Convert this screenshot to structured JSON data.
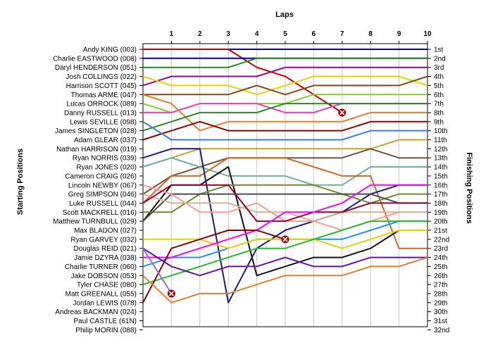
{
  "chart_data": {
    "type": "line",
    "title": "Laps",
    "ylabel_left": "Starting Positions",
    "ylabel_right": "Finishing Positions",
    "laps": [
      1,
      2,
      3,
      4,
      5,
      6,
      7,
      8,
      9,
      10
    ],
    "starting_labels": [
      "Andy KING (003)",
      "Charlie EASTWOOD (008)",
      "Daryl HENDERSON (051)",
      "Josh COLLINGS (022)",
      "Harrison SCOTT (045)",
      "Thomas ARME (047)",
      "Lucas ORROCK (089)",
      "Danny RUSSELL (013)",
      "Lewis SEVILLE (098)",
      "James SINGLETON (028)",
      "Adam GLEAR (037)",
      "Nathan HARRISON (019)",
      "Ryan NORRIS (039)",
      "Ryan JONES (020)",
      "Cameron CRAIG (026)",
      "Lincoln NEWBY (067)",
      "Greg SIMPSON (046)",
      "Luke RUSSELL (044)",
      "Scott MACKRELL (016)",
      "Matthew TURNBULL (029)",
      "Max BLADON (027)",
      "Ryan GARVEY (032)",
      "Douglas REID (021)",
      "Jamie DZYRA (038)",
      "Charlie TURNER (060)",
      "Jake DOBSON (053)",
      "Tyler CHASE (080)",
      "Matt GREENALL (055)",
      "Jordan LEWIS (078)",
      "Andreas BACKMAN (024)",
      "Paul CASTLE (61N)",
      "Philip MORIN (088)"
    ],
    "finishing_labels": [
      "1st",
      "2nd",
      "3rd",
      "4th",
      "5th",
      "6th",
      "7th",
      "8th",
      "9th",
      "10th",
      "11th",
      "12th",
      "13th",
      "14th",
      "15th",
      "16th",
      "17th",
      "18th",
      "19th",
      "20th",
      "21st",
      "22nd",
      "23rd",
      "24th",
      "25th",
      "26th",
      "27th",
      "28th",
      "29th",
      "30th",
      "31st",
      "32nd"
    ],
    "y_range": [
      1,
      32
    ],
    "grid": "vertical",
    "retired_marker": "x",
    "series": [
      {
        "color": "#0000cc",
        "positions": [
          1,
          1,
          1,
          1,
          1,
          1,
          1,
          1,
          1,
          1,
          1
        ]
      },
      {
        "color": "#cc0000",
        "positions": [
          1,
          1,
          1,
          1,
          3,
          4,
          6,
          8
        ]
      },
      {
        "color": "#0000aa",
        "positions": [
          2,
          2,
          2,
          2,
          2,
          2,
          2,
          2,
          2,
          2,
          2
        ]
      },
      {
        "color": "#228b22",
        "positions": [
          3,
          3,
          3,
          3,
          2,
          2,
          2,
          2,
          2,
          2,
          2
        ]
      },
      {
        "color": "#990099",
        "positions": [
          5,
          4,
          4,
          4,
          4,
          3,
          3,
          3,
          3,
          3,
          3
        ]
      },
      {
        "color": "#e6d200",
        "positions": [
          4,
          5,
          5,
          5,
          6,
          5,
          4,
          4,
          4,
          4,
          5
        ]
      },
      {
        "color": "#8b4513",
        "positions": [
          6,
          6,
          6,
          6,
          5,
          6,
          5,
          5,
          5,
          5,
          4
        ]
      },
      {
        "color": "#7ed321",
        "positions": [
          7,
          8,
          7,
          7,
          7,
          7,
          6,
          6,
          6,
          6,
          6
        ]
      },
      {
        "color": "#ff33cc",
        "positions": [
          8,
          8,
          7,
          7,
          7,
          8,
          8,
          7,
          7,
          7,
          7
        ]
      },
      {
        "color": "#e67e22",
        "positions": [
          6,
          7,
          10,
          9,
          9,
          9,
          9,
          9,
          8,
          8,
          8
        ]
      },
      {
        "color": "#8b0000",
        "positions": [
          11,
          10,
          9,
          10,
          10,
          10,
          10,
          10,
          9,
          9,
          9
        ]
      },
      {
        "color": "#228b22",
        "positions": [
          10,
          9,
          8,
          8,
          8,
          7,
          7,
          7,
          7,
          7,
          7
        ]
      },
      {
        "color": "#3a7fd5",
        "positions": [
          9,
          11,
          11,
          11,
          11,
          11,
          11,
          11,
          10,
          10,
          10
        ]
      },
      {
        "color": "#c9a227",
        "positions": [
          14,
          13,
          12,
          12,
          12,
          12,
          12,
          12,
          12,
          11,
          11
        ]
      },
      {
        "color": "#70543a",
        "positions": [
          17,
          15,
          14,
          13,
          13,
          13,
          13,
          13,
          12,
          13,
          13
        ]
      },
      {
        "color": "#66b2a8",
        "positions": [
          14,
          13,
          14,
          15,
          15,
          15,
          16,
          16,
          14,
          14,
          14
        ]
      },
      {
        "color": "#d2691e",
        "positions": [
          18,
          15,
          15,
          13,
          13,
          13,
          14,
          15,
          15,
          23,
          23
        ]
      },
      {
        "color": "#111111",
        "positions": [
          20,
          16,
          16,
          14,
          26,
          25,
          24,
          24,
          23,
          21,
          21
        ]
      },
      {
        "color": "#1a1a80",
        "positions": [
          13,
          12,
          12,
          29,
          23,
          21,
          20,
          19,
          17,
          16,
          16
        ]
      },
      {
        "color": "#6b8e23",
        "positions": [
          19,
          19,
          17,
          16,
          16,
          16,
          16,
          17,
          18,
          17,
          17
        ]
      },
      {
        "color": "#4a4a4a",
        "positions": [
          20,
          17,
          17,
          17,
          17,
          17,
          17,
          17,
          17,
          18,
          18
        ]
      },
      {
        "color": "#ff9999",
        "positions": [
          16,
          17,
          19,
          19,
          18,
          20,
          20,
          21,
          20,
          19,
          19
        ]
      },
      {
        "color": "#d2b48c",
        "positions": [
          17,
          18,
          18,
          18,
          19,
          19,
          20,
          19,
          19,
          19,
          19
        ]
      },
      {
        "color": "#990033",
        "positions": [
          18,
          16,
          16,
          16,
          20,
          20,
          19,
          19,
          18,
          18,
          18
        ]
      },
      {
        "color": "#1e90ff",
        "positions": [
          25,
          24,
          24,
          23,
          22,
          22,
          22,
          22,
          21,
          20,
          20
        ]
      },
      {
        "color": "#e6d200",
        "positions": [
          22,
          22,
          22,
          23,
          22,
          22,
          22,
          23,
          22,
          21,
          21
        ]
      },
      {
        "color": "#ff00ff",
        "positions": [
          24,
          24,
          23,
          22,
          21,
          19,
          19,
          18,
          16,
          16,
          16
        ]
      },
      {
        "color": "#20c020",
        "positions": [
          27,
          26,
          25,
          24,
          23,
          23,
          22,
          21,
          20,
          20,
          20
        ]
      },
      {
        "color": "#6a0dad",
        "positions": [
          23,
          25,
          26,
          25,
          25,
          24,
          25,
          25,
          24,
          24,
          24
        ]
      },
      {
        "color": "#8b0000",
        "positions": [
          29,
          23,
          22,
          21,
          21,
          22
        ]
      },
      {
        "color": "#8c6df0",
        "positions": [
          23,
          28
        ]
      },
      {
        "color": "#e67e22",
        "positions": [
          26,
          29,
          28,
          28,
          27,
          26,
          26,
          26,
          25,
          25,
          24
        ]
      }
    ]
  }
}
